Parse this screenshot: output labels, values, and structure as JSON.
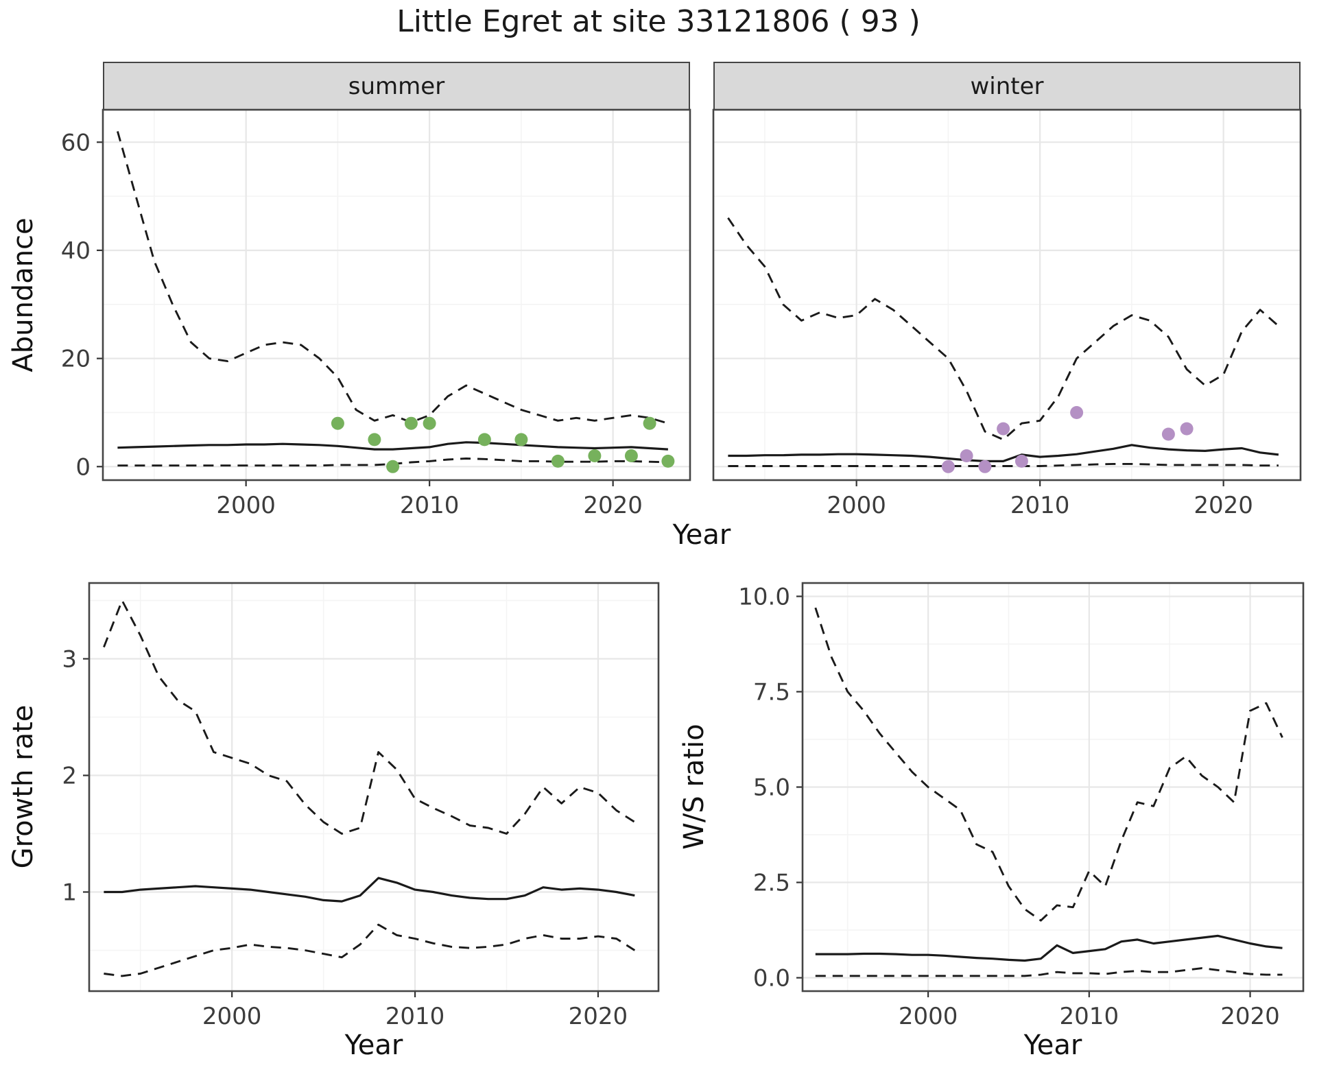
{
  "title": "Little Egret at site 33121806 ( 93 )",
  "colors": {
    "summer_point": "#76b15c",
    "winter_point": "#b490c4",
    "line": "#1a1a1a",
    "strip_bg": "#d9d9d9",
    "grid": "#e7e7e7",
    "panel_border": "#454545"
  },
  "chart_data": [
    {
      "id": "summer_abundance",
      "type": "line",
      "facet_label": "summer",
      "xlabel": "Year",
      "ylabel": "Abundance",
      "xlim": [
        1992.2,
        2024.2
      ],
      "ylim": [
        -2.5,
        66
      ],
      "x_ticks": [
        2000,
        2010,
        2020
      ],
      "x_tick_labels": [
        "2000",
        "2010",
        "2020"
      ],
      "y_ticks": [
        0,
        20,
        40,
        60
      ],
      "y_tick_labels": [
        "0",
        "20",
        "40",
        "60"
      ],
      "grid": true,
      "legend": "none",
      "series": [
        {
          "name": "upper-ci-line",
          "style": "dashed",
          "x": [
            1993,
            1994,
            1995,
            1996,
            1997,
            1998,
            1999,
            2000,
            2001,
            2002,
            2003,
            2004,
            2005,
            2006,
            2007,
            2008,
            2009,
            2010,
            2011,
            2012,
            2013,
            2014,
            2015,
            2016,
            2017,
            2018,
            2019,
            2020,
            2021,
            2022,
            2023
          ],
          "y": [
            62,
            50,
            38,
            30,
            23,
            20,
            19.5,
            21,
            22.5,
            23,
            22.5,
            20,
            16.5,
            10.5,
            8.5,
            9.5,
            8.2,
            9.5,
            13,
            15,
            13.5,
            12,
            10.5,
            9.5,
            8.5,
            9,
            8.5,
            9,
            9.5,
            9,
            8
          ]
        },
        {
          "name": "mean-line",
          "style": "solid",
          "x": [
            1993,
            1994,
            1995,
            1996,
            1997,
            1998,
            1999,
            2000,
            2001,
            2002,
            2003,
            2004,
            2005,
            2006,
            2007,
            2008,
            2009,
            2010,
            2011,
            2012,
            2013,
            2014,
            2015,
            2016,
            2017,
            2018,
            2019,
            2020,
            2021,
            2022,
            2023
          ],
          "y": [
            3.5,
            3.6,
            3.7,
            3.8,
            3.9,
            4.0,
            4.0,
            4.1,
            4.1,
            4.2,
            4.1,
            4.0,
            3.8,
            3.5,
            3.2,
            3.2,
            3.4,
            3.6,
            4.2,
            4.5,
            4.4,
            4.2,
            4.0,
            3.8,
            3.6,
            3.5,
            3.4,
            3.5,
            3.6,
            3.4,
            3.2
          ]
        },
        {
          "name": "lower-ci-line",
          "style": "dashed",
          "x": [
            1993,
            1994,
            1995,
            1996,
            1997,
            1998,
            1999,
            2000,
            2001,
            2002,
            2003,
            2004,
            2005,
            2006,
            2007,
            2008,
            2009,
            2010,
            2011,
            2012,
            2013,
            2014,
            2015,
            2016,
            2017,
            2018,
            2019,
            2020,
            2021,
            2022,
            2023
          ],
          "y": [
            0.2,
            0.2,
            0.2,
            0.2,
            0.2,
            0.2,
            0.2,
            0.2,
            0.2,
            0.2,
            0.2,
            0.2,
            0.3,
            0.3,
            0.3,
            0.5,
            0.8,
            1.0,
            1.3,
            1.5,
            1.4,
            1.2,
            1.0,
            1.0,
            0.9,
            0.9,
            0.9,
            1.0,
            1.0,
            0.9,
            0.8
          ]
        }
      ],
      "points": {
        "name": "observed-counts",
        "color": "#76b15c",
        "x": [
          2005,
          2007,
          2008,
          2009,
          2010,
          2013,
          2015,
          2017,
          2019,
          2021,
          2022,
          2023
        ],
        "y": [
          8,
          5,
          0,
          8,
          8,
          5,
          5,
          1,
          2,
          2,
          8,
          1
        ]
      }
    },
    {
      "id": "winter_abundance",
      "type": "line",
      "facet_label": "winter",
      "xlabel": "Year",
      "ylabel": "Abundance",
      "xlim": [
        1992.2,
        2024.2
      ],
      "ylim": [
        -2.5,
        66
      ],
      "x_ticks": [
        2000,
        2010,
        2020
      ],
      "x_tick_labels": [
        "2000",
        "2010",
        "2020"
      ],
      "y_ticks": [
        0,
        20,
        40,
        60
      ],
      "y_tick_labels": [
        "0",
        "20",
        "40",
        "60"
      ],
      "grid": true,
      "legend": "none",
      "series": [
        {
          "name": "upper-ci-line",
          "style": "dashed",
          "x": [
            1993,
            1994,
            1995,
            1996,
            1997,
            1998,
            1999,
            2000,
            2001,
            2002,
            2003,
            2004,
            2005,
            2006,
            2007,
            2008,
            2009,
            2010,
            2011,
            2012,
            2013,
            2014,
            2015,
            2016,
            2017,
            2018,
            2019,
            2020,
            2021,
            2022,
            2023
          ],
          "y": [
            46,
            41,
            37,
            30,
            27,
            28.5,
            27.5,
            28,
            31,
            29,
            26,
            23,
            20,
            14,
            6.5,
            5,
            8,
            8.5,
            13,
            20,
            23,
            26,
            28,
            27,
            24,
            18,
            15,
            17,
            25,
            29,
            26
          ]
        },
        {
          "name": "mean-line",
          "style": "solid",
          "x": [
            1993,
            1994,
            1995,
            1996,
            1997,
            1998,
            1999,
            2000,
            2001,
            2002,
            2003,
            2004,
            2005,
            2006,
            2007,
            2008,
            2009,
            2010,
            2011,
            2012,
            2013,
            2014,
            2015,
            2016,
            2017,
            2018,
            2019,
            2020,
            2021,
            2022,
            2023
          ],
          "y": [
            2.0,
            2.0,
            2.1,
            2.1,
            2.2,
            2.2,
            2.3,
            2.3,
            2.2,
            2.1,
            2.0,
            1.8,
            1.5,
            1.2,
            1.0,
            1.0,
            2.2,
            1.8,
            2.0,
            2.3,
            2.8,
            3.3,
            4.0,
            3.5,
            3.2,
            3.0,
            2.9,
            3.2,
            3.4,
            2.6,
            2.2
          ]
        },
        {
          "name": "lower-ci-line",
          "style": "dashed",
          "x": [
            1993,
            1994,
            1995,
            1996,
            1997,
            1998,
            1999,
            2000,
            2001,
            2002,
            2003,
            2004,
            2005,
            2006,
            2007,
            2008,
            2009,
            2010,
            2011,
            2012,
            2013,
            2014,
            2015,
            2016,
            2017,
            2018,
            2019,
            2020,
            2021,
            2022,
            2023
          ],
          "y": [
            0.1,
            0.1,
            0.1,
            0.1,
            0.1,
            0.1,
            0.1,
            0.1,
            0.1,
            0.1,
            0.1,
            0.1,
            0.1,
            0.1,
            0.1,
            0.1,
            0.1,
            0.1,
            0.2,
            0.3,
            0.4,
            0.5,
            0.5,
            0.4,
            0.3,
            0.3,
            0.3,
            0.3,
            0.3,
            0.2,
            0.2
          ]
        }
      ],
      "points": {
        "name": "observed-counts",
        "color": "#b490c4",
        "x": [
          2005,
          2006,
          2007,
          2008,
          2009,
          2012,
          2017,
          2018
        ],
        "y": [
          0,
          2,
          0,
          7,
          1,
          10,
          6,
          7
        ]
      }
    },
    {
      "id": "growth_rate",
      "type": "line",
      "facet_label": "",
      "xlabel": "Year",
      "ylabel": "Growth rate",
      "xlim": [
        1992.2,
        2023.3
      ],
      "ylim": [
        0.15,
        3.65
      ],
      "x_ticks": [
        2000,
        2010,
        2020
      ],
      "x_tick_labels": [
        "2000",
        "2010",
        "2020"
      ],
      "y_ticks": [
        1,
        2,
        3
      ],
      "y_tick_labels": [
        "1",
        "2",
        "3"
      ],
      "grid": true,
      "legend": "none",
      "series": [
        {
          "name": "upper-ci-line",
          "style": "dashed",
          "x": [
            1993,
            1994,
            1995,
            1996,
            1997,
            1998,
            1999,
            2000,
            2001,
            2002,
            2003,
            2004,
            2005,
            2006,
            2007,
            2008,
            2009,
            2010,
            2011,
            2012,
            2013,
            2014,
            2015,
            2016,
            2017,
            2018,
            2019,
            2020,
            2021,
            2022
          ],
          "y": [
            3.1,
            3.5,
            3.2,
            2.85,
            2.65,
            2.55,
            2.2,
            2.15,
            2.1,
            2.0,
            1.95,
            1.75,
            1.6,
            1.5,
            1.55,
            2.2,
            2.05,
            1.8,
            1.72,
            1.65,
            1.57,
            1.55,
            1.5,
            1.67,
            1.9,
            1.76,
            1.9,
            1.85,
            1.7,
            1.6
          ]
        },
        {
          "name": "mean-line",
          "style": "solid",
          "x": [
            1993,
            1994,
            1995,
            1996,
            1997,
            1998,
            1999,
            2000,
            2001,
            2002,
            2003,
            2004,
            2005,
            2006,
            2007,
            2008,
            2009,
            2010,
            2011,
            2012,
            2013,
            2014,
            2015,
            2016,
            2017,
            2018,
            2019,
            2020,
            2021,
            2022
          ],
          "y": [
            1.0,
            1.0,
            1.02,
            1.03,
            1.04,
            1.05,
            1.04,
            1.03,
            1.02,
            1.0,
            0.98,
            0.96,
            0.93,
            0.92,
            0.97,
            1.12,
            1.08,
            1.02,
            1.0,
            0.97,
            0.95,
            0.94,
            0.94,
            0.97,
            1.04,
            1.02,
            1.03,
            1.02,
            1.0,
            0.97
          ]
        },
        {
          "name": "lower-ci-line",
          "style": "dashed",
          "x": [
            1993,
            1994,
            1995,
            1996,
            1997,
            1998,
            1999,
            2000,
            2001,
            2002,
            2003,
            2004,
            2005,
            2006,
            2007,
            2008,
            2009,
            2010,
            2011,
            2012,
            2013,
            2014,
            2015,
            2016,
            2017,
            2018,
            2019,
            2020,
            2021,
            2022
          ],
          "y": [
            0.3,
            0.28,
            0.3,
            0.35,
            0.4,
            0.45,
            0.5,
            0.52,
            0.55,
            0.53,
            0.52,
            0.5,
            0.47,
            0.44,
            0.55,
            0.72,
            0.63,
            0.6,
            0.56,
            0.53,
            0.52,
            0.53,
            0.55,
            0.6,
            0.63,
            0.6,
            0.6,
            0.62,
            0.6,
            0.5
          ]
        }
      ]
    },
    {
      "id": "ws_ratio",
      "type": "line",
      "facet_label": "",
      "xlabel": "Year",
      "ylabel": "W/S ratio",
      "xlim": [
        1992.2,
        2023.3
      ],
      "ylim": [
        -0.35,
        10.35
      ],
      "x_ticks": [
        2000,
        2010,
        2020
      ],
      "x_tick_labels": [
        "2000",
        "2010",
        "2020"
      ],
      "y_ticks": [
        0,
        2.5,
        5,
        7.5,
        10
      ],
      "y_tick_labels": [
        "0.0",
        "2.5",
        "5.0",
        "7.5",
        "10.0"
      ],
      "grid": true,
      "legend": "none",
      "series": [
        {
          "name": "upper-ci-line",
          "style": "dashed",
          "x": [
            1993,
            1994,
            1995,
            1996,
            1997,
            1998,
            1999,
            2000,
            2001,
            2002,
            2003,
            2004,
            2005,
            2006,
            2007,
            2008,
            2009,
            2010,
            2011,
            2012,
            2013,
            2014,
            2015,
            2016,
            2017,
            2018,
            2019,
            2020,
            2021,
            2022
          ],
          "y": [
            9.7,
            8.4,
            7.5,
            7.0,
            6.4,
            5.9,
            5.4,
            5.0,
            4.7,
            4.4,
            3.5,
            3.3,
            2.4,
            1.8,
            1.5,
            1.9,
            1.85,
            2.8,
            2.4,
            3.6,
            4.6,
            4.5,
            5.5,
            5.8,
            5.3,
            5.0,
            4.6,
            7.0,
            7.2,
            6.3
          ]
        },
        {
          "name": "mean-line",
          "style": "solid",
          "x": [
            1993,
            1994,
            1995,
            1996,
            1997,
            1998,
            1999,
            2000,
            2001,
            2002,
            2003,
            2004,
            2005,
            2006,
            2007,
            2008,
            2009,
            2010,
            2011,
            2012,
            2013,
            2014,
            2015,
            2016,
            2017,
            2018,
            2019,
            2020,
            2021,
            2022
          ],
          "y": [
            0.62,
            0.62,
            0.62,
            0.63,
            0.63,
            0.62,
            0.6,
            0.6,
            0.58,
            0.55,
            0.52,
            0.5,
            0.47,
            0.45,
            0.5,
            0.85,
            0.65,
            0.7,
            0.75,
            0.95,
            1.0,
            0.9,
            0.95,
            1.0,
            1.05,
            1.1,
            1.0,
            0.9,
            0.82,
            0.78
          ]
        },
        {
          "name": "lower-ci-line",
          "style": "dashed",
          "x": [
            1993,
            1994,
            1995,
            1996,
            1997,
            1998,
            1999,
            2000,
            2001,
            2002,
            2003,
            2004,
            2005,
            2006,
            2007,
            2008,
            2009,
            2010,
            2011,
            2012,
            2013,
            2014,
            2015,
            2016,
            2017,
            2018,
            2019,
            2020,
            2021,
            2022
          ],
          "y": [
            0.05,
            0.05,
            0.05,
            0.05,
            0.05,
            0.05,
            0.05,
            0.05,
            0.05,
            0.05,
            0.05,
            0.05,
            0.05,
            0.05,
            0.08,
            0.15,
            0.12,
            0.12,
            0.1,
            0.15,
            0.18,
            0.15,
            0.15,
            0.2,
            0.25,
            0.2,
            0.15,
            0.1,
            0.08,
            0.08
          ]
        }
      ]
    }
  ]
}
